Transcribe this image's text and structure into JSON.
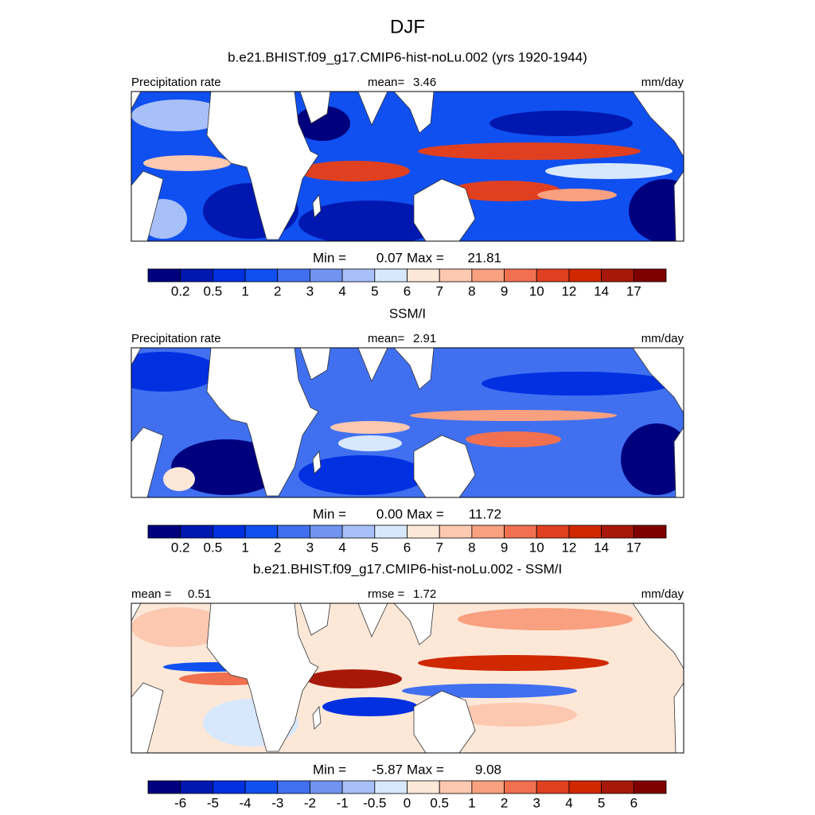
{
  "title": "DJF",
  "panels": [
    {
      "heading": "b.e21.BHIST.f09_g17.CMIP6-hist-noLu.002 (yrs 1920-1944)",
      "left_label": "Precipitation rate",
      "center_label": "mean=",
      "center_value": "3.46",
      "right_label": "mm/day",
      "stats": {
        "min_label": "Min =",
        "min": "0.07",
        "max_label": "Max =",
        "max": "21.81"
      },
      "colorbar": {
        "labels": [
          "0.2",
          "0.5",
          "1",
          "2",
          "3",
          "4",
          "5",
          "6",
          "7",
          "8",
          "9",
          "10",
          "12",
          "14",
          "17"
        ],
        "colors": [
          "#00007f",
          "#0018b0",
          "#0030e0",
          "#1050f0",
          "#4070f0",
          "#7094f0",
          "#a8c0f8",
          "#d8e8fc",
          "#fde8d8",
          "#fcc8b0",
          "#f8a080",
          "#f07050",
          "#e04020",
          "#d02800",
          "#a81808",
          "#800000"
        ]
      }
    },
    {
      "heading": "SSM/I",
      "left_label": "Precipitation rate",
      "center_label": "mean=",
      "center_value": "2.91",
      "right_label": "mm/day",
      "stats": {
        "min_label": "Min =",
        "min": "0.00",
        "max_label": "Max =",
        "max": "11.72"
      },
      "colorbar": {
        "labels": [
          "0.2",
          "0.5",
          "1",
          "2",
          "3",
          "4",
          "5",
          "6",
          "7",
          "8",
          "9",
          "10",
          "12",
          "14",
          "17"
        ],
        "colors": [
          "#00007f",
          "#0018b0",
          "#0030e0",
          "#1050f0",
          "#4070f0",
          "#7094f0",
          "#a8c0f8",
          "#d8e8fc",
          "#fde8d8",
          "#fcc8b0",
          "#f8a080",
          "#f07050",
          "#e04020",
          "#d02800",
          "#a81808",
          "#800000"
        ]
      }
    },
    {
      "heading": "b.e21.BHIST.f09_g17.CMIP6-hist-noLu.002 - SSM/I",
      "left_label": "mean =",
      "left_value": "0.51",
      "center_label": "rmse =",
      "center_value": "1.72",
      "right_label": "mm/day",
      "stats": {
        "min_label": "Min =",
        "min": "-5.87",
        "max_label": "Max =",
        "max": "9.08"
      },
      "colorbar": {
        "labels": [
          "-6",
          "-5",
          "-4",
          "-3",
          "-2",
          "-1",
          "-0.5",
          "0",
          "0.5",
          "1",
          "2",
          "3",
          "4",
          "5",
          "6"
        ],
        "colors": [
          "#00007f",
          "#0018b0",
          "#0030e0",
          "#1050f0",
          "#4070f0",
          "#7094f0",
          "#a8c0f8",
          "#d8e8fc",
          "#fde8d8",
          "#fcc8b0",
          "#f8a080",
          "#f07050",
          "#e04020",
          "#d02800",
          "#a81808",
          "#800000"
        ]
      }
    }
  ]
}
